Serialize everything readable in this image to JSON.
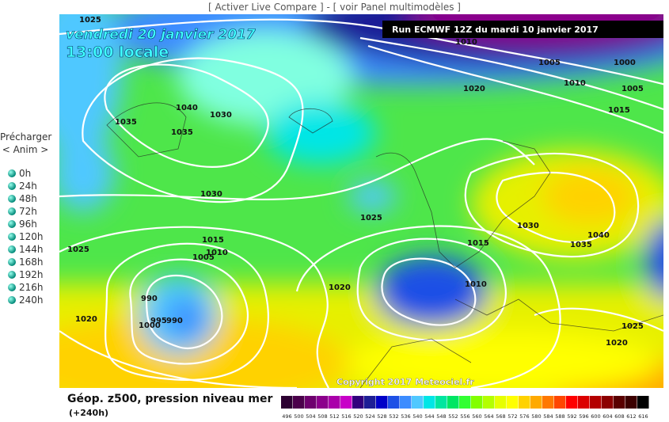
{
  "header": {
    "links": [
      "[ Activer Live Compare ]",
      " - ",
      "[ voir Panel multimodèles ]"
    ]
  },
  "sidebar": {
    "preload": "Précharger",
    "anim": "< Anim >",
    "steps": [
      "0h",
      "24h",
      "48h",
      "72h",
      "96h",
      "120h",
      "144h",
      "168h",
      "192h",
      "216h",
      "240h"
    ]
  },
  "map": {
    "date": "vendredi 20 janvier 2017",
    "time": "13:00 locale",
    "run": "Run ECMWF 12Z du mardi 10 janvier 2017",
    "copyright": "Copyright 2017 Meteociel.fr",
    "isobar_labels": [
      "1025",
      "1010",
      "1005",
      "1000",
      "1010",
      "1005",
      "1020",
      "1015",
      "1040",
      "1030",
      "1035",
      "1035",
      "1030",
      "1025",
      "1030",
      "1040",
      "1035",
      "1015",
      "1010",
      "1005",
      "1015",
      "1025",
      "1020",
      "1010",
      "990",
      "995",
      "990",
      "1000",
      "1020",
      "1025",
      "1020"
    ]
  },
  "legend": {
    "title": "Géop. z500, pression niveau mer",
    "lead": "(+240h)",
    "scale_labels": [
      "496",
      "500",
      "504",
      "508",
      "512",
      "516",
      "520",
      "524",
      "528",
      "532",
      "536",
      "540",
      "544",
      "548",
      "552",
      "556",
      "560",
      "564",
      "568",
      "572",
      "576",
      "580",
      "584",
      "588",
      "592",
      "596",
      "600",
      "604",
      "608",
      "612",
      "616"
    ],
    "scale_colors": [
      "#2d0032",
      "#4b004b",
      "#6e006e",
      "#8c008c",
      "#aa00aa",
      "#c800c8",
      "#32007d",
      "#1e1e96",
      "#0000c8",
      "#1e50e6",
      "#3c8cff",
      "#50c8ff",
      "#00e6e6",
      "#00e6a0",
      "#00e664",
      "#32ff32",
      "#82ff00",
      "#b4ff00",
      "#e6ff00",
      "#ffff00",
      "#ffd200",
      "#ffaa00",
      "#ff7800",
      "#ff4600",
      "#ff0000",
      "#dc0000",
      "#b40000",
      "#8c0000",
      "#5a0000",
      "#3c0000",
      "#000000"
    ]
  }
}
